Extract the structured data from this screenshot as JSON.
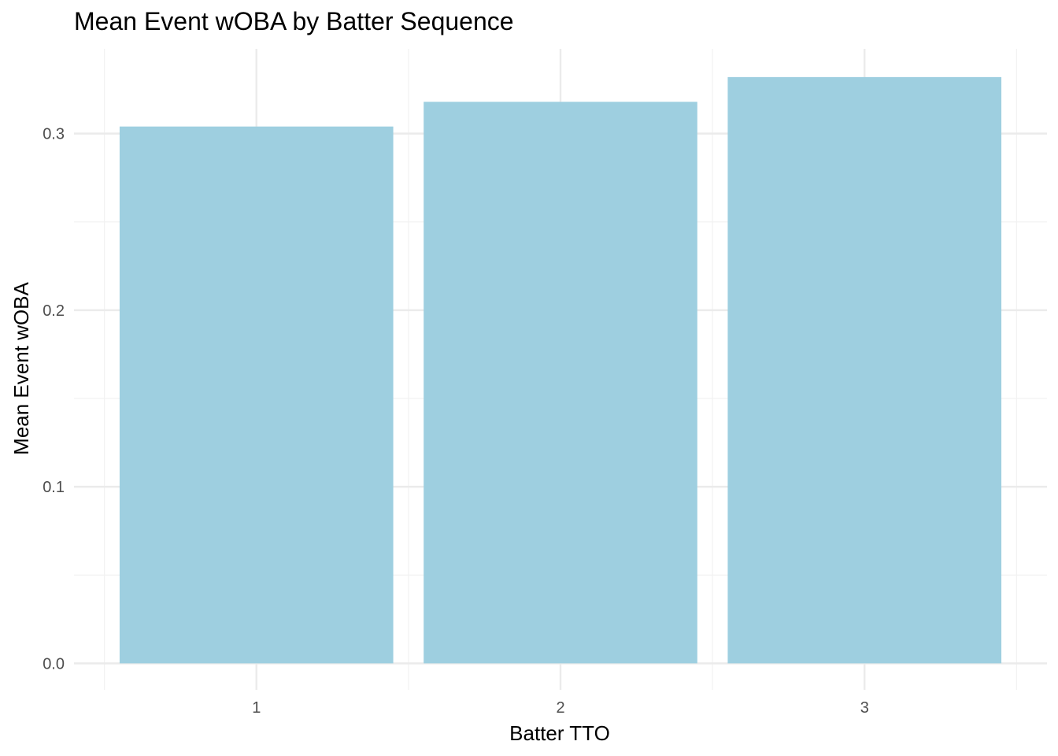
{
  "chart_data": {
    "type": "bar",
    "title": "Mean Event wOBA by Batter Sequence",
    "xlabel": "Batter TTO",
    "ylabel": "Mean Event wOBA",
    "categories": [
      "1",
      "2",
      "3"
    ],
    "values": [
      0.304,
      0.318,
      0.332
    ],
    "ylim": [
      -0.015,
      0.348
    ],
    "yticks": [
      "0.0",
      "0.1",
      "0.2",
      "0.3"
    ],
    "ytick_values": [
      0.0,
      0.1,
      0.2,
      0.3
    ],
    "grid": true,
    "legend": "none",
    "bar_color": "#9ecfe0",
    "grid_major_color": "#ebebeb",
    "grid_minor_color": "#f2f2f2"
  }
}
